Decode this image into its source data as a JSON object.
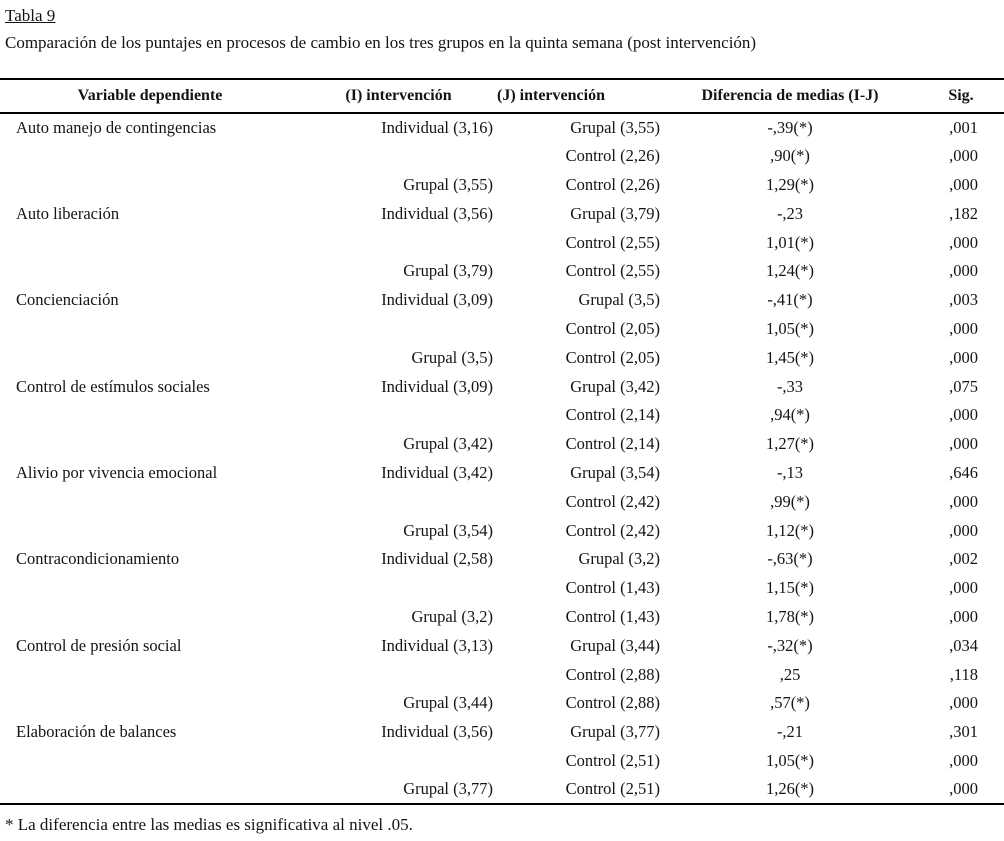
{
  "page": {
    "title": "Tabla 9",
    "subtitle": "Comparación de los puntajes en procesos de cambio en los tres grupos en la quinta semana (post intervención)",
    "footnote": "* La diferencia entre las medias es significativa al nivel .05."
  },
  "colors": {
    "background": "#ffffff",
    "text": "#141414",
    "rule": "#000000"
  },
  "table": {
    "columns": [
      "Variable dependiente",
      "(I) intervención",
      "(J) intervención",
      "Diferencia de medias (I-J)",
      "Sig."
    ],
    "rows": [
      [
        "Auto manejo de contingencias",
        "Individual (3,16)",
        "Grupal (3,55)",
        "-,39(*)",
        ",001"
      ],
      [
        "",
        "",
        "Control (2,26)",
        ",90(*)",
        ",000"
      ],
      [
        "",
        "Grupal (3,55)",
        "Control (2,26)",
        "1,29(*)",
        ",000"
      ],
      [
        "Auto liberación",
        "Individual (3,56)",
        "Grupal (3,79)",
        "-,23",
        ",182"
      ],
      [
        "",
        "",
        "Control (2,55)",
        "1,01(*)",
        ",000"
      ],
      [
        "",
        "Grupal (3,79)",
        "Control (2,55)",
        "1,24(*)",
        ",000"
      ],
      [
        "Concienciación",
        "Individual (3,09)",
        "Grupal (3,5)",
        "-,41(*)",
        ",003"
      ],
      [
        "",
        "",
        "Control (2,05)",
        "1,05(*)",
        ",000"
      ],
      [
        "",
        "Grupal (3,5)",
        "Control (2,05)",
        "1,45(*)",
        ",000"
      ],
      [
        "Control de estímulos sociales",
        "Individual (3,09)",
        "Grupal (3,42)",
        "-,33",
        ",075"
      ],
      [
        "",
        "",
        "Control (2,14)",
        ",94(*)",
        ",000"
      ],
      [
        "",
        "Grupal (3,42)",
        "Control (2,14)",
        "1,27(*)",
        ",000"
      ],
      [
        "Alivio por vivencia emocional",
        "Individual (3,42)",
        "Grupal (3,54)",
        "-,13",
        ",646"
      ],
      [
        "",
        "",
        "Control (2,42)",
        ",99(*)",
        ",000"
      ],
      [
        "",
        "Grupal (3,54)",
        "Control (2,42)",
        "1,12(*)",
        ",000"
      ],
      [
        "Contracondicionamiento",
        "Individual (2,58)",
        "Grupal (3,2)",
        "-,63(*)",
        ",002"
      ],
      [
        "",
        "",
        "Control (1,43)",
        "1,15(*)",
        ",000"
      ],
      [
        "",
        "Grupal (3,2)",
        "Control (1,43)",
        "1,78(*)",
        ",000"
      ],
      [
        "Control de presión social",
        "Individual (3,13)",
        "Grupal (3,44)",
        "-,32(*)",
        ",034"
      ],
      [
        "",
        "",
        "Control (2,88)",
        ",25",
        ",118"
      ],
      [
        "",
        "Grupal (3,44)",
        "Control (2,88)",
        ",57(*)",
        ",000"
      ],
      [
        "Elaboración de balances",
        "Individual (3,56)",
        "Grupal (3,77)",
        "-,21",
        ",301"
      ],
      [
        "",
        "",
        "Control (2,51)",
        "1,05(*)",
        ",000"
      ],
      [
        "",
        "Grupal (3,77)",
        "Control (2,51)",
        "1,26(*)",
        ",000"
      ]
    ]
  }
}
